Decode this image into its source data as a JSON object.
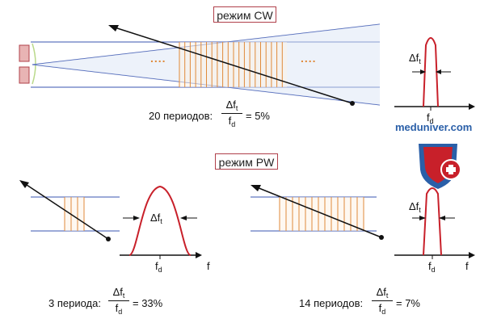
{
  "cw": {
    "mode_label": "режим CW",
    "periods_label": "20 периодов:",
    "ratio_num": "Δf",
    "ratio_num_sub": "t",
    "ratio_den": "f",
    "ratio_den_sub": "d",
    "ratio_value": "= 5%",
    "dots_left": "....",
    "dots_right": "....",
    "spectrum": {
      "bw_label": "Δf",
      "bw_sub": "t",
      "axis_label": "f",
      "axis_sub": "d"
    }
  },
  "pw": {
    "mode_label": "режим PW",
    "left": {
      "periods_label": "3 периода:",
      "ratio_value": "= 33%",
      "spectrum": {
        "bw_label": "Δf",
        "bw_sub": "t",
        "center_label": "f",
        "center_sub": "d",
        "axis_label": "f"
      }
    },
    "right": {
      "periods_label": "14 периодов:",
      "ratio_value": "= 7%",
      "spectrum": {
        "bw_label": "Δf",
        "bw_sub": "t",
        "center_label": "f",
        "center_sub": "d",
        "axis_label": "f"
      }
    }
  },
  "watermark": {
    "text": "meduniver.com",
    "icon": "medical-cross-shield-icon"
  },
  "colors": {
    "beam": "#3a55b0",
    "pulse": "#e08a3a",
    "curve": "#c8202a",
    "frame": "#b0404a"
  }
}
